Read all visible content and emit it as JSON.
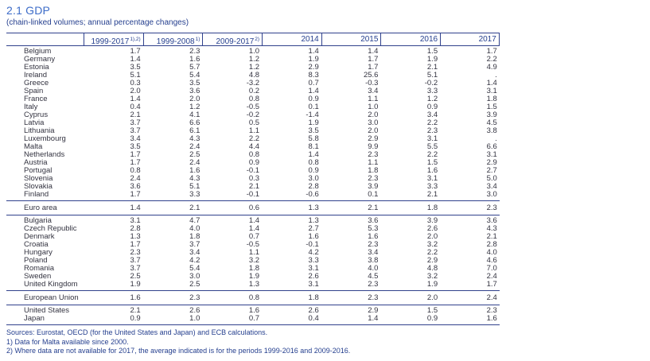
{
  "page": {
    "title": "2.1 GDP",
    "subtitle": "(chain-linked volumes; annual percentage changes)"
  },
  "colors": {
    "title_blue": "#3d6cc8",
    "header_navy": "#26408f",
    "rule_navy": "#30418c",
    "body_text": "#333340",
    "background": "#ffffff"
  },
  "table": {
    "columns": [
      {
        "label": "1999-2017",
        "sup": "1),2)"
      },
      {
        "label": "1999-2008",
        "sup": "1)"
      },
      {
        "label": "2009-2017",
        "sup": "2)"
      },
      {
        "label": "2014",
        "sup": ""
      },
      {
        "label": "2015",
        "sup": ""
      },
      {
        "label": "2016",
        "sup": ""
      },
      {
        "label": "2017",
        "sup": ""
      }
    ],
    "sections": [
      {
        "kind": "block",
        "rows": [
          {
            "name": "Belgium",
            "values": [
              "1.7",
              "2.3",
              "1.0",
              "1.4",
              "1.4",
              "1.5",
              "1.7"
            ]
          },
          {
            "name": "Germany",
            "values": [
              "1.4",
              "1.6",
              "1.2",
              "1.9",
              "1.7",
              "1.9",
              "2.2"
            ]
          },
          {
            "name": "Estonia",
            "values": [
              "3.5",
              "5.7",
              "1.2",
              "2.9",
              "1.7",
              "2.1",
              "4.9"
            ]
          },
          {
            "name": "Ireland",
            "values": [
              "5.1",
              "5.4",
              "4.8",
              "8.3",
              "25.6",
              "5.1",
              "."
            ]
          },
          {
            "name": "Greece",
            "values": [
              "0.3",
              "3.5",
              "-3.2",
              "0.7",
              "-0.3",
              "-0.2",
              "1.4"
            ]
          },
          {
            "name": "Spain",
            "values": [
              "2.0",
              "3.6",
              "0.2",
              "1.4",
              "3.4",
              "3.3",
              "3.1"
            ]
          },
          {
            "name": "France",
            "values": [
              "1.4",
              "2.0",
              "0.8",
              "0.9",
              "1.1",
              "1.2",
              "1.8"
            ]
          },
          {
            "name": "Italy",
            "values": [
              "0.4",
              "1.2",
              "-0.5",
              "0.1",
              "1.0",
              "0.9",
              "1.5"
            ]
          },
          {
            "name": "Cyprus",
            "values": [
              "2.1",
              "4.1",
              "-0.2",
              "-1.4",
              "2.0",
              "3.4",
              "3.9"
            ]
          },
          {
            "name": "Latvia",
            "values": [
              "3.7",
              "6.6",
              "0.5",
              "1.9",
              "3.0",
              "2.2",
              "4.5"
            ]
          },
          {
            "name": "Lithuania",
            "values": [
              "3.7",
              "6.1",
              "1.1",
              "3.5",
              "2.0",
              "2.3",
              "3.8"
            ]
          },
          {
            "name": "Luxembourg",
            "values": [
              "3.4",
              "4.3",
              "2.2",
              "5.8",
              "2.9",
              "3.1",
              "."
            ]
          },
          {
            "name": "Malta",
            "values": [
              "3.5",
              "2.4",
              "4.4",
              "8.1",
              "9.9",
              "5.5",
              "6.6"
            ]
          },
          {
            "name": "Netherlands",
            "values": [
              "1.7",
              "2.5",
              "0.8",
              "1.4",
              "2.3",
              "2.2",
              "3.1"
            ]
          },
          {
            "name": "Austria",
            "values": [
              "1.7",
              "2.4",
              "0.9",
              "0.8",
              "1.1",
              "1.5",
              "2.9"
            ]
          },
          {
            "name": "Portugal",
            "values": [
              "0.8",
              "1.6",
              "-0.1",
              "0.9",
              "1.8",
              "1.6",
              "2.7"
            ]
          },
          {
            "name": "Slovenia",
            "values": [
              "2.4",
              "4.3",
              "0.3",
              "3.0",
              "2.3",
              "3.1",
              "5.0"
            ]
          },
          {
            "name": "Slovakia",
            "values": [
              "3.6",
              "5.1",
              "2.1",
              "2.8",
              "3.9",
              "3.3",
              "3.4"
            ]
          },
          {
            "name": "Finland",
            "values": [
              "1.7",
              "3.3",
              "-0.1",
              "-0.6",
              "0.1",
              "2.1",
              "3.0"
            ]
          }
        ]
      },
      {
        "kind": "summary",
        "rows": [
          {
            "name": "Euro area",
            "values": [
              "1.4",
              "2.1",
              "0.6",
              "1.3",
              "2.1",
              "1.8",
              "2.3"
            ]
          }
        ]
      },
      {
        "kind": "block",
        "rows": [
          {
            "name": "Bulgaria",
            "values": [
              "3.1",
              "4.7",
              "1.4",
              "1.3",
              "3.6",
              "3.9",
              "3.6"
            ]
          },
          {
            "name": "Czech Republic",
            "values": [
              "2.8",
              "4.0",
              "1.4",
              "2.7",
              "5.3",
              "2.6",
              "4.3"
            ]
          },
          {
            "name": "Denmark",
            "values": [
              "1.3",
              "1.8",
              "0.7",
              "1.6",
              "1.6",
              "2.0",
              "2.1"
            ]
          },
          {
            "name": "Croatia",
            "values": [
              "1.7",
              "3.7",
              "-0.5",
              "-0.1",
              "2.3",
              "3.2",
              "2.8"
            ]
          },
          {
            "name": "Hungary",
            "values": [
              "2.3",
              "3.4",
              "1.1",
              "4.2",
              "3.4",
              "2.2",
              "4.0"
            ]
          },
          {
            "name": "Poland",
            "values": [
              "3.7",
              "4.2",
              "3.2",
              "3.3",
              "3.8",
              "2.9",
              "4.6"
            ]
          },
          {
            "name": "Romania",
            "values": [
              "3.7",
              "5.4",
              "1.8",
              "3.1",
              "4.0",
              "4.8",
              "7.0"
            ]
          },
          {
            "name": "Sweden",
            "values": [
              "2.5",
              "3.0",
              "1.9",
              "2.6",
              "4.5",
              "3.2",
              "2.4"
            ]
          },
          {
            "name": "United Kingdom",
            "values": [
              "1.9",
              "2.5",
              "1.3",
              "3.1",
              "2.3",
              "1.9",
              "1.7"
            ]
          }
        ]
      },
      {
        "kind": "summary",
        "rows": [
          {
            "name": "European Union",
            "values": [
              "1.6",
              "2.3",
              "0.8",
              "1.8",
              "2.3",
              "2.0",
              "2.4"
            ]
          }
        ]
      },
      {
        "kind": "block",
        "rows": [
          {
            "name": "United States",
            "values": [
              "2.1",
              "2.6",
              "1.6",
              "2.6",
              "2.9",
              "1.5",
              "2.3"
            ]
          },
          {
            "name": "Japan",
            "values": [
              "0.9",
              "1.0",
              "0.7",
              "0.4",
              "1.4",
              "0.9",
              "1.6"
            ]
          }
        ]
      }
    ]
  },
  "footnotes": [
    "Sources: Eurostat, OECD (for the United States and Japan) and ECB calculations.",
    "1) Data for Malta available since 2000.",
    "2) Where data are not available for 2017, the average indicated is for the periods 1999-2016 and 2009-2016."
  ]
}
